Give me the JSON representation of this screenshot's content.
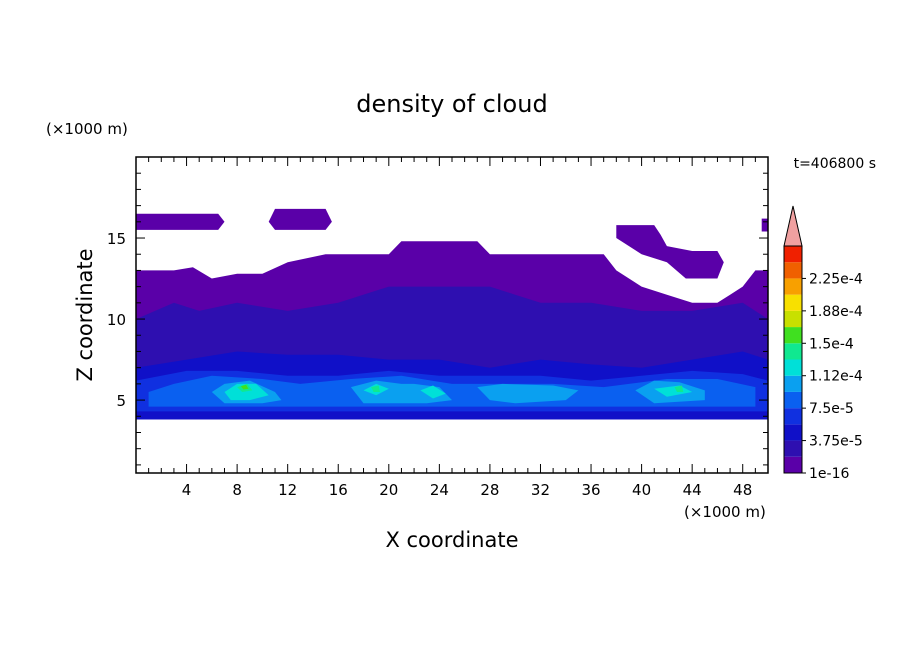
{
  "chart_data": {
    "type": "heatmap",
    "title": "density of cloud",
    "xlabel": "X coordinate",
    "ylabel": "Z coordinate",
    "x_unit": "(×1000 m)",
    "y_unit": "(×1000 m)",
    "time_label": "t=406800 s",
    "xlim": [
      0,
      50
    ],
    "ylim": [
      0.5,
      20
    ],
    "x_ticks": [
      4,
      8,
      12,
      16,
      20,
      24,
      28,
      32,
      36,
      40,
      44,
      48
    ],
    "y_ticks": [
      5,
      10,
      15
    ],
    "grid": false,
    "colorbar": {
      "levels": [
        1e-16,
        1.875e-05,
        3.75e-05,
        5.625e-05,
        7.5e-05,
        9.375e-05,
        0.0001125,
        0.00013125,
        0.00015,
        0.00016875,
        0.0001875,
        0.00020625,
        0.000225,
        0.00024375
      ],
      "labels": [
        "1e-16",
        "3.75e-5",
        "7.5e-5",
        "1.12e-4",
        "1.5e-4",
        "1.88e-4",
        "2.25e-4"
      ],
      "colors": [
        "#5a00a8",
        "#2e0fb0",
        "#1010c8",
        "#1030e0",
        "#0a60f0",
        "#0aa0f0",
        "#00e0d8",
        "#10e890",
        "#40e020",
        "#c8e000",
        "#f8e000",
        "#f8a000",
        "#f06000",
        "#f02000"
      ],
      "extend_color": "#f0a0a0"
    },
    "regions": [
      {
        "level": 0,
        "points": [
          [
            0,
            16.5
          ],
          [
            6.5,
            16.5
          ],
          [
            7,
            16
          ],
          [
            6.5,
            15.5
          ],
          [
            0,
            15.5
          ]
        ]
      },
      {
        "level": 0,
        "points": [
          [
            10.5,
            16
          ],
          [
            11,
            16.8
          ],
          [
            15,
            16.8
          ],
          [
            15.5,
            16
          ],
          [
            15,
            15.5
          ],
          [
            11,
            15.5
          ]
        ]
      },
      {
        "level": 0,
        "points": [
          [
            38,
            15.8
          ],
          [
            41,
            15.8
          ],
          [
            41.5,
            15.2
          ],
          [
            42,
            14.5
          ],
          [
            44,
            14.2
          ],
          [
            46,
            14.2
          ],
          [
            46.5,
            13.5
          ],
          [
            46,
            12.5
          ],
          [
            43.5,
            12.5
          ],
          [
            42,
            13.5
          ],
          [
            40,
            14
          ],
          [
            38,
            15
          ]
        ]
      },
      {
        "level": 0,
        "points": [
          [
            49.5,
            16.2
          ],
          [
            50,
            16.2
          ],
          [
            50,
            15.4
          ],
          [
            49.5,
            15.4
          ]
        ]
      },
      {
        "level": 0,
        "points": [
          [
            0,
            13
          ],
          [
            3,
            13
          ],
          [
            4.5,
            13.2
          ],
          [
            6,
            12.5
          ],
          [
            8,
            12.8
          ],
          [
            10,
            12.8
          ],
          [
            12,
            13.5
          ],
          [
            15,
            14
          ],
          [
            18,
            14
          ],
          [
            20,
            14
          ],
          [
            21,
            14.8
          ],
          [
            27,
            14.8
          ],
          [
            28,
            14
          ],
          [
            32,
            14
          ],
          [
            37,
            14
          ],
          [
            38,
            13
          ],
          [
            40,
            12
          ],
          [
            42,
            11.5
          ],
          [
            44,
            11
          ],
          [
            46,
            11
          ],
          [
            47,
            11.5
          ],
          [
            48,
            12
          ],
          [
            49,
            13
          ],
          [
            50,
            13
          ],
          [
            50,
            3.8
          ],
          [
            0,
            3.8
          ]
        ]
      },
      {
        "level": 1,
        "points": [
          [
            0,
            10
          ],
          [
            3,
            11
          ],
          [
            5,
            10.5
          ],
          [
            8,
            11
          ],
          [
            12,
            10.5
          ],
          [
            16,
            11
          ],
          [
            20,
            12
          ],
          [
            24,
            12
          ],
          [
            28,
            12
          ],
          [
            30,
            11.5
          ],
          [
            32,
            11
          ],
          [
            36,
            11
          ],
          [
            40,
            10.5
          ],
          [
            44,
            10.5
          ],
          [
            48,
            11
          ],
          [
            50,
            10
          ],
          [
            50,
            3.8
          ],
          [
            0,
            3.8
          ]
        ]
      },
      {
        "level": 2,
        "points": [
          [
            0,
            7
          ],
          [
            4,
            7.5
          ],
          [
            8,
            8
          ],
          [
            12,
            7.8
          ],
          [
            16,
            7.8
          ],
          [
            20,
            7.5
          ],
          [
            24,
            7.5
          ],
          [
            28,
            7
          ],
          [
            32,
            7.5
          ],
          [
            36,
            7.2
          ],
          [
            40,
            7
          ],
          [
            44,
            7.5
          ],
          [
            48,
            8
          ],
          [
            50,
            7.5
          ],
          [
            50,
            3.8
          ],
          [
            0,
            3.8
          ]
        ]
      },
      {
        "level": 3,
        "points": [
          [
            0,
            6.2
          ],
          [
            4,
            6.8
          ],
          [
            8,
            6.8
          ],
          [
            12,
            6.5
          ],
          [
            16,
            6.5
          ],
          [
            20,
            6.8
          ],
          [
            24,
            6.5
          ],
          [
            28,
            6.5
          ],
          [
            32,
            6.5
          ],
          [
            36,
            6.2
          ],
          [
            40,
            6.5
          ],
          [
            44,
            6.8
          ],
          [
            48,
            6.6
          ],
          [
            50,
            6.2
          ],
          [
            50,
            4.3
          ],
          [
            0,
            4.3
          ]
        ]
      },
      {
        "level": 4,
        "points": [
          [
            1,
            5.5
          ],
          [
            3,
            6
          ],
          [
            6,
            6.5
          ],
          [
            10,
            6.3
          ],
          [
            13,
            6
          ],
          [
            17,
            6.3
          ],
          [
            21,
            6.5
          ],
          [
            25,
            6
          ],
          [
            29,
            6
          ],
          [
            33,
            6
          ],
          [
            37,
            5.8
          ],
          [
            39,
            6
          ],
          [
            42,
            6.3
          ],
          [
            46,
            6.3
          ],
          [
            49,
            5.8
          ],
          [
            49,
            4.6
          ],
          [
            1,
            4.6
          ]
        ]
      },
      {
        "level": 5,
        "points": [
          [
            6,
            5.5
          ],
          [
            7,
            6
          ],
          [
            9,
            6.2
          ],
          [
            11,
            5.5
          ],
          [
            11.5,
            5
          ],
          [
            10,
            4.8
          ],
          [
            7,
            4.8
          ]
        ]
      },
      {
        "level": 5,
        "points": [
          [
            17,
            5.8
          ],
          [
            19,
            6.2
          ],
          [
            21,
            6
          ],
          [
            22,
            6
          ],
          [
            24,
            5.8
          ],
          [
            25,
            5
          ],
          [
            23,
            4.8
          ],
          [
            18,
            4.8
          ]
        ]
      },
      {
        "level": 5,
        "points": [
          [
            27,
            5.8
          ],
          [
            29,
            6
          ],
          [
            33,
            5.9
          ],
          [
            35,
            5.6
          ],
          [
            34,
            5
          ],
          [
            30,
            4.8
          ],
          [
            28,
            5
          ]
        ]
      },
      {
        "level": 5,
        "points": [
          [
            39.5,
            5.6
          ],
          [
            41,
            6.2
          ],
          [
            43,
            6.1
          ],
          [
            45,
            5.6
          ],
          [
            45,
            5
          ],
          [
            41,
            4.8
          ]
        ]
      },
      {
        "level": 6,
        "points": [
          [
            7,
            5.5
          ],
          [
            8,
            6
          ],
          [
            9.5,
            6
          ],
          [
            10.5,
            5.3
          ],
          [
            9,
            5
          ],
          [
            7.5,
            5
          ]
        ]
      },
      {
        "level": 6,
        "points": [
          [
            18,
            5.6
          ],
          [
            19,
            6
          ],
          [
            20,
            5.7
          ],
          [
            19,
            5.3
          ]
        ]
      },
      {
        "level": 6,
        "points": [
          [
            22.5,
            5.6
          ],
          [
            23.5,
            5.9
          ],
          [
            24.5,
            5.4
          ],
          [
            23.5,
            5.1
          ]
        ]
      },
      {
        "level": 6,
        "points": [
          [
            41,
            5.7
          ],
          [
            43,
            5.9
          ],
          [
            44,
            5.5
          ],
          [
            42,
            5.2
          ]
        ]
      },
      {
        "level": 7,
        "points": [
          [
            8,
            5.8
          ],
          [
            8.8,
            6
          ],
          [
            9.2,
            5.6
          ],
          [
            8.4,
            5.5
          ]
        ]
      },
      {
        "level": 7,
        "points": [
          [
            18.6,
            5.8
          ],
          [
            19.2,
            5.9
          ],
          [
            19.3,
            5.5
          ],
          [
            18.8,
            5.5
          ]
        ]
      },
      {
        "level": 7,
        "points": [
          [
            42.6,
            5.8
          ],
          [
            43.2,
            5.9
          ],
          [
            43.3,
            5.5
          ],
          [
            42.8,
            5.5
          ]
        ]
      },
      {
        "level": 8,
        "points": [
          [
            8.3,
            5.85
          ],
          [
            8.7,
            5.95
          ],
          [
            8.9,
            5.7
          ],
          [
            8.5,
            5.65
          ]
        ]
      }
    ]
  }
}
